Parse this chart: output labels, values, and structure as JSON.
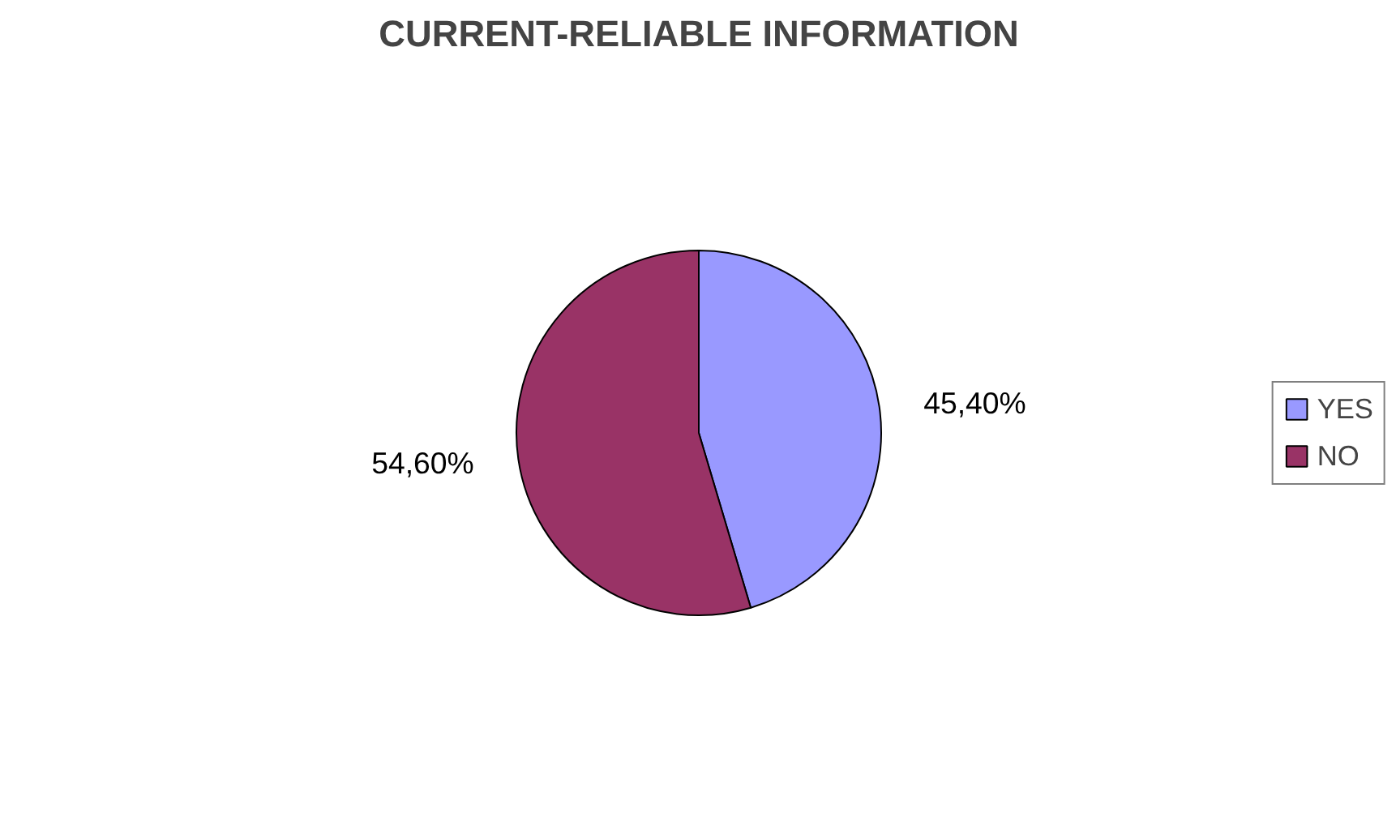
{
  "chart_data": {
    "type": "pie",
    "title": "CURRENT-RELIABLE INFORMATION",
    "categories": [
      "YES",
      "NO"
    ],
    "values": [
      45.4,
      54.6
    ],
    "colors": [
      "#9999ff",
      "#993366"
    ],
    "value_labels": [
      "45,40%",
      "54,60%"
    ],
    "legend": "right"
  }
}
